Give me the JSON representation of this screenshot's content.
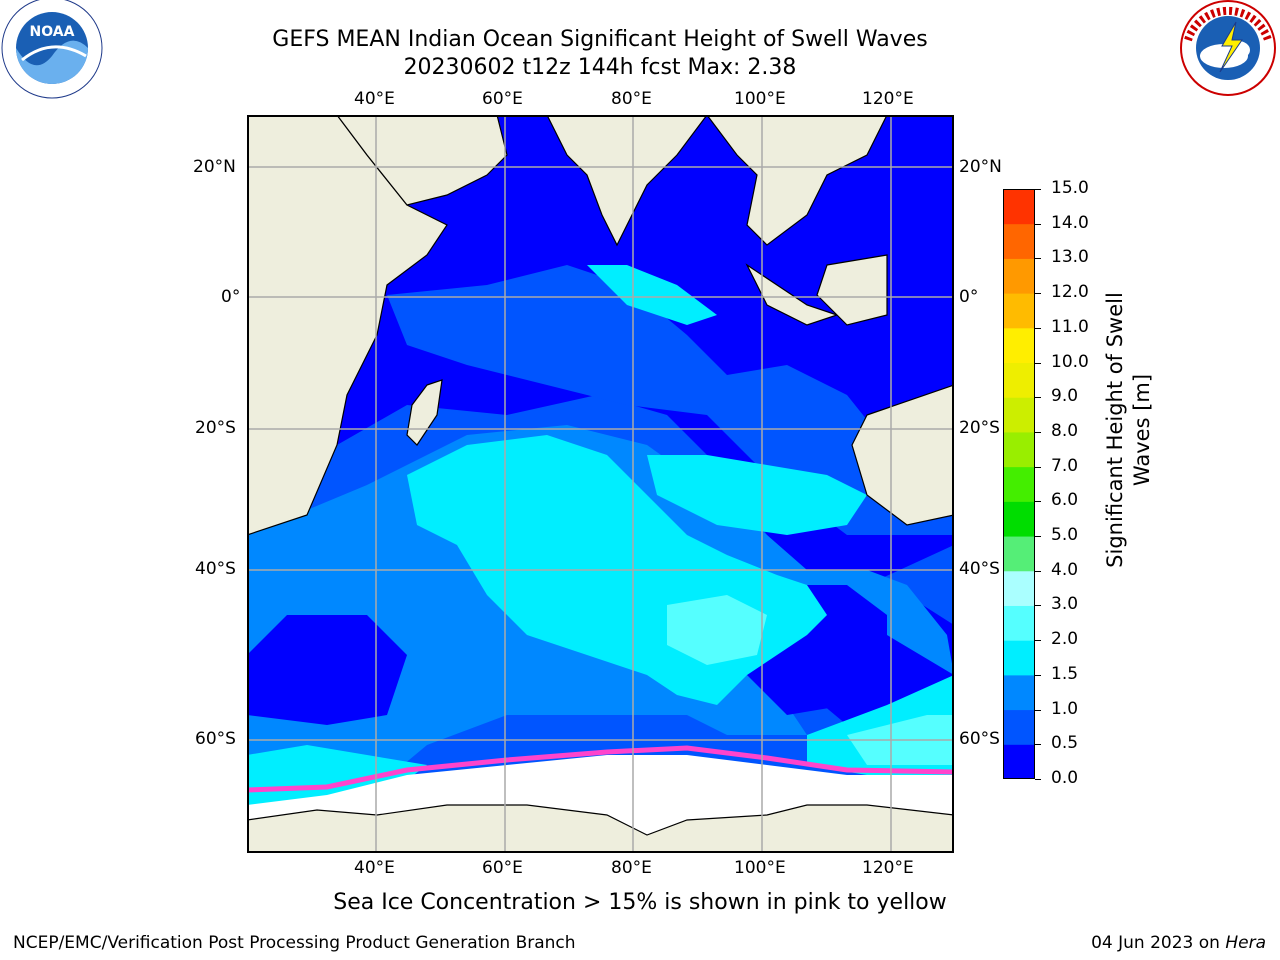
{
  "header": {
    "title_line1": "GEFS MEAN Indian Ocean Significant Height of Swell Waves",
    "title_line2": "20230602 t12z 144h fcst   Max: 2.38"
  },
  "logos": {
    "left": {
      "text": "NOAA",
      "ring_text": "NATIONAL OCEANIC AND ATMOSPHERIC ADMINISTRATION · U.S. DEPARTMENT OF COMMERCE"
    },
    "right": {
      "ring_text": "NATIONAL WEATHER SERVICE"
    }
  },
  "map": {
    "lon_ticks_top": [
      "40°E",
      "60°E",
      "80°E",
      "100°E",
      "120°E"
    ],
    "lon_ticks_bottom": [
      "40°E",
      "60°E",
      "80°E",
      "100°E",
      "120°E"
    ],
    "lat_ticks_left": [
      "20°N",
      "0°",
      "20°S",
      "40°S",
      "60°S"
    ],
    "lat_ticks_right": [
      "20°N",
      "0°",
      "20°S",
      "40°S",
      "60°S"
    ],
    "colors": {
      "land": "#eeeedd",
      "ocean_0": "#0000ff",
      "ocean_05": "#0055ff",
      "ocean_1": "#0088ff",
      "ocean_15": "#00eeff",
      "ocean_2": "#55ffff",
      "ice": "#ffffff",
      "ice_edge": "#ff44cc"
    }
  },
  "colorbar": {
    "label": "Significant Height of Swell Waves [m]",
    "label_line1": "Significant Height of Swell",
    "label_line2": "Waves [m]",
    "ticks": [
      "0.0",
      "0.5",
      "1.0",
      "1.5",
      "2.0",
      "3.0",
      "4.0",
      "5.0",
      "6.0",
      "7.0",
      "8.0",
      "9.0",
      "10.0",
      "11.0",
      "12.0",
      "13.0",
      "14.0",
      "15.0"
    ],
    "colors": [
      "#0000ff",
      "#0055ff",
      "#0088ff",
      "#00eeff",
      "#55ffff",
      "#aaffff",
      "#55ee77",
      "#00dd00",
      "#44ee00",
      "#99ee00",
      "#ccee00",
      "#eeee00",
      "#ffee00",
      "#ffbb00",
      "#ff9900",
      "#ff6600",
      "#ff3300",
      "#ff0000"
    ]
  },
  "footer": {
    "ice_note": "Sea Ice Concentration > 15% is shown in pink to yellow",
    "credit": "NCEP/EMC/Verification Post Processing Product Generation Branch",
    "date": "04 Jun 2023 on ",
    "host": "Hera"
  }
}
